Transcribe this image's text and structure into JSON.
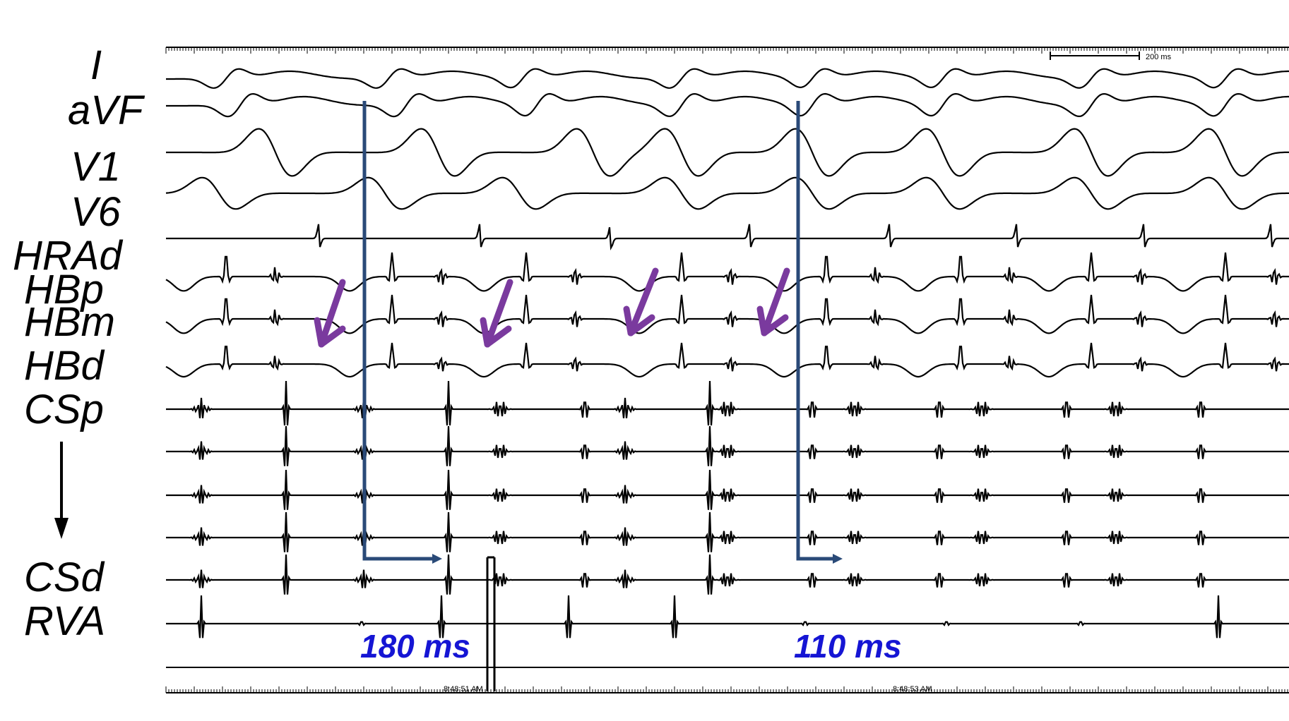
{
  "leads": [
    {
      "id": "I",
      "label": "I"
    },
    {
      "id": "aVF",
      "label": "aVF"
    },
    {
      "id": "V1",
      "label": "V1"
    },
    {
      "id": "V6",
      "label": "V6"
    },
    {
      "id": "HRAd",
      "label": "HRAd"
    },
    {
      "id": "HBp",
      "label": "HBp"
    },
    {
      "id": "HBm",
      "label": "HBm"
    },
    {
      "id": "HBd",
      "label": "HBd"
    },
    {
      "id": "CSp",
      "label": "CSp"
    },
    {
      "id": "CSd",
      "label": "CSd"
    },
    {
      "id": "RVA",
      "label": "RVA"
    }
  ],
  "intervals": [
    {
      "label": "180 ms"
    },
    {
      "label": "110 ms"
    }
  ],
  "scale_bar": {
    "label": "200 ms"
  },
  "timestamps": [
    "8:48:51 AM",
    "8:48:53 AM"
  ],
  "colors": {
    "trace": "#000000",
    "interval_marker": "#2a4a78",
    "interval_text": "#1515d4",
    "arrow": "#7a3a9e"
  },
  "annotation_arrows": {
    "count": 4,
    "icon": "purple-down-left-arrow"
  }
}
